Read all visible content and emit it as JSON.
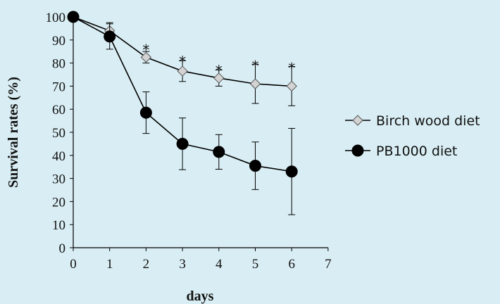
{
  "chart_data": {
    "type": "line",
    "xlabel": "days",
    "ylabel": "Survival rates (%)",
    "xlim": [
      0,
      7
    ],
    "ylim": [
      0,
      100
    ],
    "xticks": [
      "0",
      "1",
      "2",
      "3",
      "4",
      "5",
      "6",
      "7"
    ],
    "yticks": [
      "0",
      "10",
      "20",
      "30",
      "40",
      "50",
      "60",
      "70",
      "80",
      "90",
      "100"
    ],
    "grid": false,
    "legend_position": "right",
    "series": [
      {
        "name": "Birch wood diet",
        "marker": "diamond",
        "color": "#d3d3d3",
        "x": [
          0,
          1,
          2,
          3,
          4,
          5,
          6
        ],
        "y": [
          100,
          94,
          82.5,
          76.5,
          73.5,
          71,
          70
        ],
        "error": [
          0,
          3.5,
          2.5,
          4.5,
          3.5,
          8.5,
          8.5
        ]
      },
      {
        "name": "PB1000 diet",
        "marker": "circle",
        "color": "#000000",
        "x": [
          0,
          1,
          2,
          3,
          4,
          5,
          6
        ],
        "y": [
          100,
          91.5,
          58.5,
          45,
          41.5,
          35.5,
          33
        ],
        "error": [
          0,
          5.5,
          9,
          11.2,
          7.5,
          10.3,
          18.7
        ]
      }
    ],
    "annotations": [
      {
        "x": 2,
        "y": 86,
        "text": "*"
      },
      {
        "x": 3,
        "y": 81,
        "text": "*"
      },
      {
        "x": 4,
        "y": 77,
        "text": "*"
      },
      {
        "x": 5,
        "y": 79,
        "text": "*"
      },
      {
        "x": 6,
        "y": 78,
        "text": "*"
      }
    ]
  }
}
